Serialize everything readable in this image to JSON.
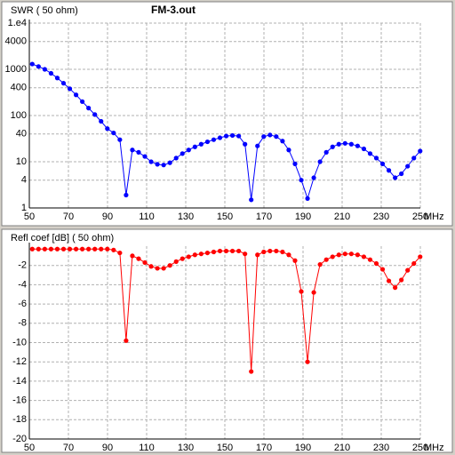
{
  "chart_data": [
    {
      "type": "line",
      "title": "SWR ( 50 ohm)",
      "subtitle": "FM-3.out",
      "x_label": "MHz",
      "yscale": "log",
      "grid": true,
      "xlim": [
        50,
        250
      ],
      "xticks": [
        50,
        70,
        90,
        110,
        130,
        150,
        170,
        190,
        210,
        230,
        250
      ],
      "ylim": [
        1,
        10000
      ],
      "yticks": [
        1,
        4,
        10,
        40,
        100,
        400,
        1000,
        4000,
        {
          "value": 10000,
          "label": "1.e4"
        }
      ],
      "x": [
        51.5,
        54.7,
        57.9,
        61.1,
        64.3,
        67.5,
        70.7,
        73.9,
        77.1,
        80.3,
        83.5,
        86.7,
        89.9,
        93.1,
        96.3,
        99.5,
        102.7,
        105.9,
        109.1,
        112.3,
        115.5,
        118.7,
        121.9,
        125.1,
        128.3,
        131.5,
        134.7,
        137.9,
        141.1,
        144.3,
        147.5,
        150.7,
        153.9,
        157.1,
        160.3,
        163.5,
        166.7,
        169.9,
        173.1,
        176.3,
        179.5,
        182.7,
        185.9,
        189.1,
        192.3,
        195.5,
        198.7,
        201.9,
        205.1,
        208.3,
        211.5,
        214.7,
        217.9,
        221.1,
        224.3,
        227.5,
        230.7,
        233.9,
        237.1,
        240.3,
        243.5,
        246.7,
        249.9
      ],
      "series": [
        {
          "color": "#0000ff",
          "values": [
            1300,
            1150,
            1000,
            820,
            650,
            500,
            380,
            280,
            200,
            145,
            105,
            75,
            52,
            42,
            30,
            1.9,
            18,
            16,
            13,
            10,
            8.8,
            8.5,
            9.5,
            12,
            15,
            18,
            21,
            24,
            27,
            30,
            33,
            36,
            37,
            36,
            24,
            1.5,
            22,
            35,
            38,
            35,
            28,
            18,
            9,
            4,
            1.6,
            4.5,
            10,
            16,
            21,
            24,
            25,
            24,
            22,
            19,
            15,
            12,
            9,
            6.5,
            4.5,
            5.5,
            8,
            12,
            17
          ]
        }
      ]
    },
    {
      "type": "line",
      "title": "Refl coef [dB] ( 50 ohm)",
      "x_label": "MHz",
      "grid": true,
      "xlim": [
        50,
        250
      ],
      "xticks": [
        50,
        70,
        90,
        110,
        130,
        150,
        170,
        190,
        210,
        230,
        250
      ],
      "ylim": [
        -20,
        0
      ],
      "yticks": [
        -2,
        -4,
        -6,
        -8,
        -10,
        -12,
        -14,
        -16,
        -18,
        -20
      ],
      "x": [
        51.5,
        54.7,
        57.9,
        61.1,
        64.3,
        67.5,
        70.7,
        73.9,
        77.1,
        80.3,
        83.5,
        86.7,
        89.9,
        93.1,
        96.3,
        99.5,
        102.7,
        105.9,
        109.1,
        112.3,
        115.5,
        118.7,
        121.9,
        125.1,
        128.3,
        131.5,
        134.7,
        137.9,
        141.1,
        144.3,
        147.5,
        150.7,
        153.9,
        157.1,
        160.3,
        163.5,
        166.7,
        169.9,
        173.1,
        176.3,
        179.5,
        182.7,
        185.9,
        189.1,
        192.3,
        195.5,
        198.7,
        201.9,
        205.1,
        208.3,
        211.5,
        214.7,
        217.9,
        221.1,
        224.3,
        227.5,
        230.7,
        233.9,
        237.1,
        240.3,
        243.5,
        246.7,
        249.9
      ],
      "series": [
        {
          "color": "#ff0000",
          "values": [
            -0.3,
            -0.3,
            -0.3,
            -0.3,
            -0.3,
            -0.3,
            -0.3,
            -0.3,
            -0.3,
            -0.3,
            -0.3,
            -0.3,
            -0.3,
            -0.4,
            -0.7,
            -9.8,
            -1,
            -1.3,
            -1.7,
            -2.1,
            -2.3,
            -2.3,
            -2.0,
            -1.6,
            -1.3,
            -1.1,
            -0.9,
            -0.8,
            -0.7,
            -0.6,
            -0.5,
            -0.5,
            -0.5,
            -0.5,
            -0.8,
            -13,
            -0.9,
            -0.6,
            -0.5,
            -0.5,
            -0.6,
            -0.9,
            -1.5,
            -4.7,
            -12,
            -4.8,
            -1.9,
            -1.4,
            -1.1,
            -0.9,
            -0.8,
            -0.8,
            -0.9,
            -1.1,
            -1.4,
            -1.8,
            -2.4,
            -3.6,
            -4.3,
            -3.5,
            -2.5,
            -1.8,
            -1.1
          ]
        }
      ]
    }
  ]
}
